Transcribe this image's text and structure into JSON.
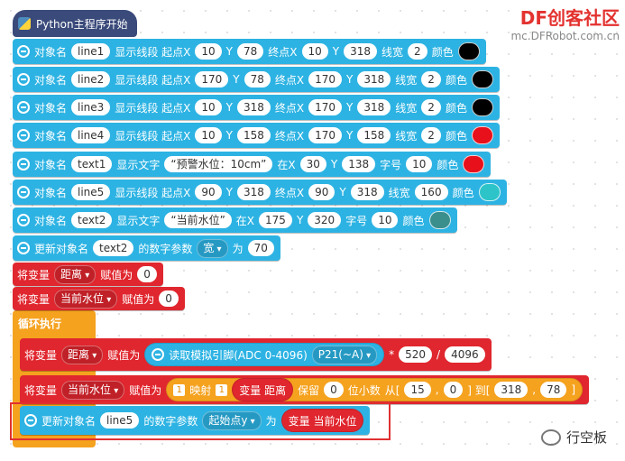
{
  "watermark": {
    "logo": "DF创客社区",
    "url": "mc.DFRobot.com.cn"
  },
  "footer": "行空板",
  "hat": "Python主程序开始",
  "loop": "循环执行",
  "rows": [
    {
      "color": "#2db3e3",
      "parts": [
        {
          "label": "对象名"
        },
        {
          "input": "line1"
        },
        {
          "label": "显示线段 起点X"
        },
        {
          "input": 10
        },
        {
          "label": "Y"
        },
        {
          "input": 78
        },
        {
          "label": "终点X"
        },
        {
          "input": 10
        },
        {
          "label": "Y"
        },
        {
          "input": 318
        },
        {
          "label": "线宽"
        },
        {
          "input": 2
        },
        {
          "label": "颜色"
        },
        {
          "color": "#000000"
        }
      ]
    },
    {
      "color": "#2db3e3",
      "parts": [
        {
          "label": "对象名"
        },
        {
          "input": "line2"
        },
        {
          "label": "显示线段 起点X"
        },
        {
          "input": 170
        },
        {
          "label": "Y"
        },
        {
          "input": 78
        },
        {
          "label": "终点X"
        },
        {
          "input": 170
        },
        {
          "label": "Y"
        },
        {
          "input": 318
        },
        {
          "label": "线宽"
        },
        {
          "input": 2
        },
        {
          "label": "颜色"
        },
        {
          "color": "#000000"
        }
      ]
    },
    {
      "color": "#2db3e3",
      "parts": [
        {
          "label": "对象名"
        },
        {
          "input": "line3"
        },
        {
          "label": "显示线段 起点X"
        },
        {
          "input": 10
        },
        {
          "label": "Y"
        },
        {
          "input": 318
        },
        {
          "label": "终点X"
        },
        {
          "input": 170
        },
        {
          "label": "Y"
        },
        {
          "input": 318
        },
        {
          "label": "线宽"
        },
        {
          "input": 2
        },
        {
          "label": "颜色"
        },
        {
          "color": "#000000"
        }
      ]
    },
    {
      "color": "#2db3e3",
      "parts": [
        {
          "label": "对象名"
        },
        {
          "input": "line4"
        },
        {
          "label": "显示线段 起点X"
        },
        {
          "input": 10
        },
        {
          "label": "Y"
        },
        {
          "input": 158
        },
        {
          "label": "终点X"
        },
        {
          "input": 170
        },
        {
          "label": "Y"
        },
        {
          "input": 158
        },
        {
          "label": "线宽"
        },
        {
          "input": 2
        },
        {
          "label": "颜色"
        },
        {
          "color": "#e8101a"
        }
      ]
    },
    {
      "color": "#2db3e3",
      "parts": [
        {
          "label": "对象名"
        },
        {
          "input": "text1"
        },
        {
          "label": "显示文字"
        },
        {
          "input": "“预警水位：10cm”"
        },
        {
          "label": "在X"
        },
        {
          "input": 30
        },
        {
          "label": "Y"
        },
        {
          "input": 138
        },
        {
          "label": "字号"
        },
        {
          "input": 10
        },
        {
          "label": "颜色"
        },
        {
          "color": "#e8101a"
        }
      ]
    },
    {
      "color": "#2db3e3",
      "parts": [
        {
          "label": "对象名"
        },
        {
          "input": "line5"
        },
        {
          "label": "显示线段 起点X"
        },
        {
          "input": 90
        },
        {
          "label": "Y"
        },
        {
          "input": 318
        },
        {
          "label": "终点X"
        },
        {
          "input": 90
        },
        {
          "label": "Y"
        },
        {
          "input": 318
        },
        {
          "label": "线宽"
        },
        {
          "input": 160
        },
        {
          "label": "颜色"
        },
        {
          "color": "#2cc4c8"
        }
      ]
    },
    {
      "color": "#2db3e3",
      "parts": [
        {
          "label": "对象名"
        },
        {
          "input": "text2"
        },
        {
          "label": "显示文字"
        },
        {
          "input": "“当前水位”"
        },
        {
          "label": "在X"
        },
        {
          "input": 175
        },
        {
          "label": "Y"
        },
        {
          "input": 320
        },
        {
          "label": "字号"
        },
        {
          "input": 10
        },
        {
          "label": "颜色"
        },
        {
          "color": "#3a8f8c"
        }
      ]
    },
    {
      "color": "#2db3e3",
      "parts": [
        {
          "label": "更新对象名"
        },
        {
          "input": "text2"
        },
        {
          "label": "的数字参数"
        },
        {
          "dropdown": "宽"
        },
        {
          "label": "为"
        },
        {
          "input": 70
        }
      ]
    },
    {
      "color": "#e0262e",
      "parts": [
        {
          "label": "将变量"
        },
        {
          "dropdown": "距离"
        },
        {
          "label": "赋值为"
        },
        {
          "input": 0
        }
      ]
    },
    {
      "color": "#e0262e",
      "parts": [
        {
          "label": "将变量"
        },
        {
          "dropdown": "当前水位"
        },
        {
          "label": "赋值为"
        },
        {
          "input": 0
        }
      ]
    },
    {
      "color": "#e0262e",
      "parts": [
        {
          "label": "将变量"
        },
        {
          "dropdown": "距离"
        },
        {
          "label": "赋值为"
        },
        {
          "block": {
            "color": "#2db3e3",
            "parts": [
              {
                "label": "读取模拟引脚(ADC 0-4096)"
              },
              {
                "dropdown": "P21(~A)"
              }
            ]
          }
        },
        {
          "label": "*"
        },
        {
          "input": 520
        },
        {
          "label": "/"
        },
        {
          "input": 4096
        }
      ]
    },
    {
      "color": "#e0262e",
      "parts": [
        {
          "label": "将变量"
        },
        {
          "dropdown": "当前水位"
        },
        {
          "label": "赋值为"
        },
        {
          "block": {
            "color": "#f5a21f",
            "parts": [
              {
                "tag": "1"
              },
              {
                "label": "映射"
              },
              {
                "tag": "1"
              },
              {
                "block": {
                  "color": "#e0262e",
                  "parts": [
                    {
                      "label": "变量 距离"
                    }
                  ]
                }
              },
              {
                "label": "保留"
              },
              {
                "input": 0
              },
              {
                "label": "位小数"
              },
              {
                "label": "从["
              },
              {
                "input": 15
              },
              {
                "label": ","
              },
              {
                "input": 0
              },
              {
                "label": "] 到["
              },
              {
                "input": 318
              },
              {
                "label": ","
              },
              {
                "input": 78
              },
              {
                "label": "]"
              }
            ]
          }
        }
      ]
    },
    {
      "color": "#2db3e3",
      "parts": [
        {
          "label": "更新对象名"
        },
        {
          "input": "line5"
        },
        {
          "label": "的数字参数"
        },
        {
          "dropdown": "起始点y"
        },
        {
          "label": "为"
        },
        {
          "block": {
            "color": "#e0262e",
            "parts": [
              {
                "label": "变量 当前水位"
              }
            ]
          }
        }
      ]
    }
  ]
}
